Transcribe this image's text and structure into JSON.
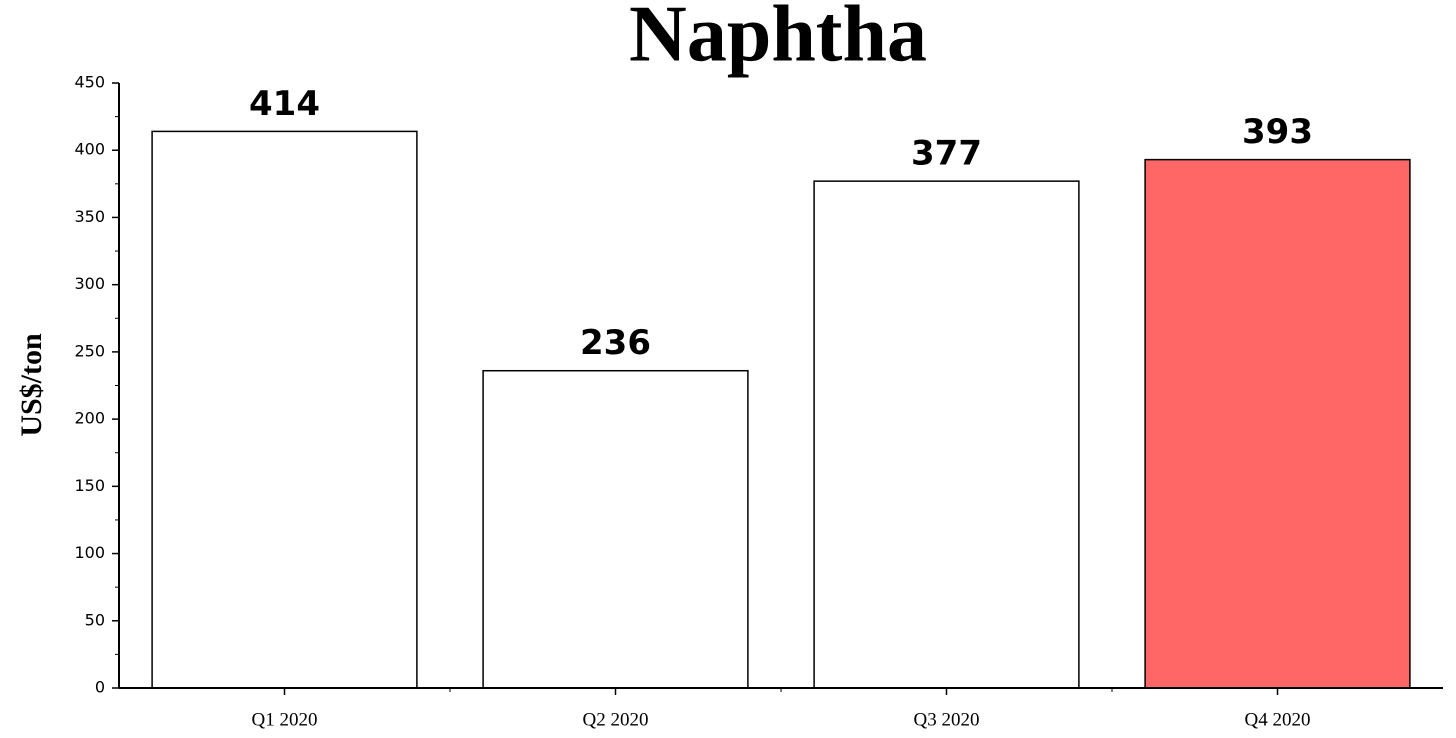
{
  "chart_data": {
    "type": "bar",
    "title": "Naphtha",
    "y_label": "US$/ton",
    "categories": [
      "Q1 2020",
      "Q2 2020",
      "Q3 2020",
      "Q4 2020"
    ],
    "values": [
      414,
      236,
      377,
      393
    ],
    "colors": [
      "#ffffff",
      "#ffffff",
      "#ffffff",
      "#ff6666"
    ],
    "ylim": [
      0,
      450
    ],
    "yticks": [
      0,
      50,
      100,
      150,
      200,
      250,
      300,
      350,
      400,
      450
    ]
  }
}
